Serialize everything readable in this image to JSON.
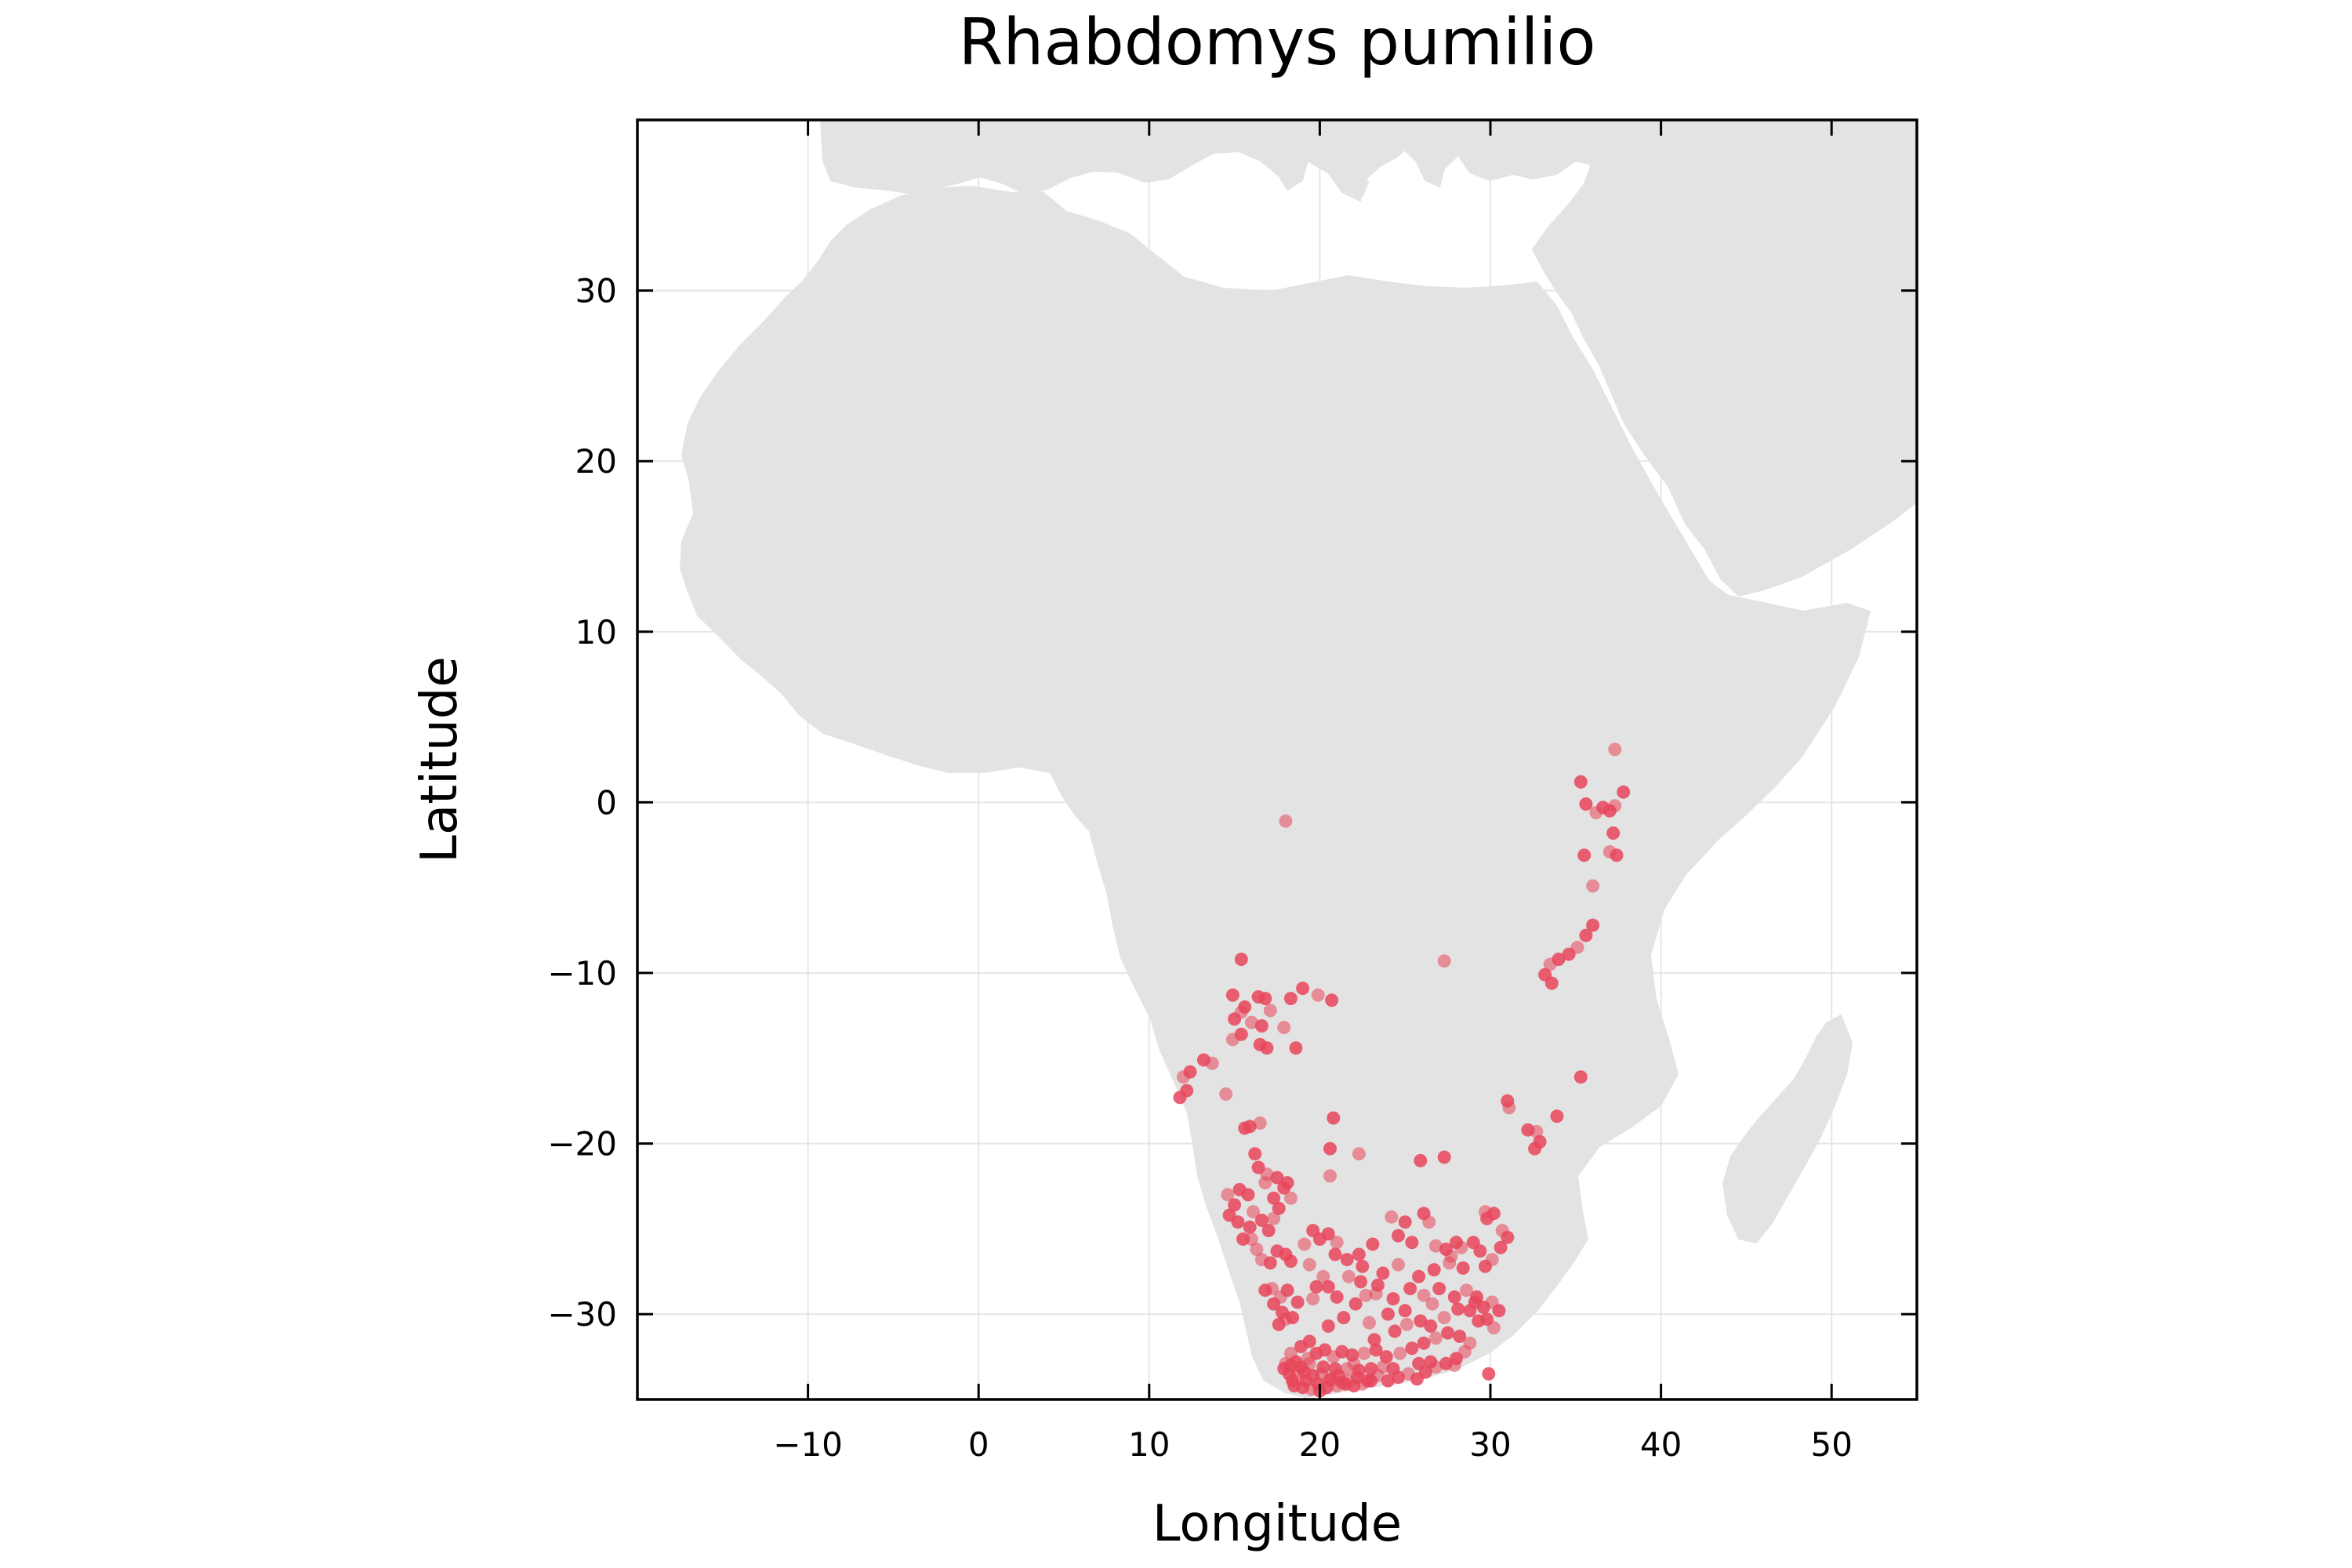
{
  "chart_data": {
    "type": "scatter",
    "title": "Rhabdomys pumilio",
    "xlabel": "Longitude",
    "ylabel": "Latitude",
    "xlim": [
      -20,
      55
    ],
    "ylim": [
      -35,
      40
    ],
    "xticks": [
      -10,
      0,
      10,
      20,
      30,
      40,
      50
    ],
    "yticks": [
      -30,
      -20,
      -10,
      0,
      10,
      20,
      30
    ],
    "xtick_labels": [
      "−10",
      "0",
      "10",
      "20",
      "30",
      "40",
      "50"
    ],
    "ytick_labels": [
      "−30",
      "−20",
      "−10",
      "0",
      "10",
      "20",
      "30"
    ],
    "grid": true,
    "legend": "none",
    "background_layer": "land-mass outline (Africa, southern Europe, Middle East, Madagascar) in light grey",
    "land_color": "#e3e3e3",
    "marker_color": "#e8455a",
    "series": [
      {
        "points": [
          [
            37.3,
            3.1
          ],
          [
            35.3,
            1.2
          ],
          [
            35.6,
            -0.1
          ],
          [
            36.2,
            -0.6
          ],
          [
            36.6,
            -0.3
          ],
          [
            37.0,
            -0.5
          ],
          [
            37.3,
            -0.2
          ],
          [
            37.8,
            0.6
          ],
          [
            37.2,
            -1.8
          ],
          [
            37.0,
            -2.9
          ],
          [
            37.4,
            -3.1
          ],
          [
            35.5,
            -3.1
          ],
          [
            36.0,
            -4.9
          ],
          [
            36.0,
            -7.2
          ],
          [
            35.6,
            -7.8
          ],
          [
            35.1,
            -8.5
          ],
          [
            34.6,
            -8.9
          ],
          [
            34.0,
            -9.2
          ],
          [
            33.5,
            -9.5
          ],
          [
            33.2,
            -10.1
          ],
          [
            33.6,
            -10.6
          ],
          [
            27.3,
            -9.3
          ],
          [
            35.3,
            -16.1
          ],
          [
            31.0,
            -17.5
          ],
          [
            31.1,
            -17.9
          ],
          [
            33.9,
            -18.4
          ],
          [
            32.2,
            -19.2
          ],
          [
            32.7,
            -19.3
          ],
          [
            32.6,
            -20.3
          ],
          [
            32.9,
            -19.9
          ],
          [
            18.0,
            -1.1
          ],
          [
            15.4,
            -9.2
          ],
          [
            14.9,
            -11.3
          ],
          [
            15.4,
            -12.3
          ],
          [
            15.0,
            -12.7
          ],
          [
            15.6,
            -12.0
          ],
          [
            16.0,
            -12.9
          ],
          [
            16.4,
            -11.4
          ],
          [
            16.8,
            -11.5
          ],
          [
            17.1,
            -12.2
          ],
          [
            16.6,
            -13.1
          ],
          [
            15.4,
            -13.6
          ],
          [
            14.9,
            -13.9
          ],
          [
            16.5,
            -14.2
          ],
          [
            16.9,
            -14.4
          ],
          [
            17.9,
            -13.2
          ],
          [
            18.3,
            -11.5
          ],
          [
            19.0,
            -10.9
          ],
          [
            19.9,
            -11.3
          ],
          [
            20.7,
            -11.6
          ],
          [
            18.6,
            -14.4
          ],
          [
            13.7,
            -15.3
          ],
          [
            13.2,
            -15.1
          ],
          [
            12.4,
            -15.8
          ],
          [
            12.0,
            -16.1
          ],
          [
            12.2,
            -16.9
          ],
          [
            11.8,
            -17.3
          ],
          [
            14.5,
            -17.1
          ],
          [
            15.6,
            -19.1
          ],
          [
            15.9,
            -19.0
          ],
          [
            16.5,
            -18.8
          ],
          [
            20.8,
            -18.5
          ],
          [
            20.6,
            -20.3
          ],
          [
            22.3,
            -20.6
          ],
          [
            27.3,
            -20.8
          ],
          [
            25.9,
            -21.0
          ],
          [
            20.6,
            -21.9
          ],
          [
            16.2,
            -20.6
          ],
          [
            16.4,
            -21.4
          ],
          [
            16.9,
            -21.8
          ],
          [
            17.5,
            -22.0
          ],
          [
            18.1,
            -22.3
          ],
          [
            16.8,
            -22.3
          ],
          [
            17.9,
            -22.6
          ],
          [
            15.3,
            -22.7
          ],
          [
            14.6,
            -23.0
          ],
          [
            15.8,
            -23.0
          ],
          [
            17.3,
            -23.2
          ],
          [
            18.3,
            -23.2
          ],
          [
            15.0,
            -23.6
          ],
          [
            17.6,
            -23.8
          ],
          [
            16.1,
            -24.0
          ],
          [
            14.7,
            -24.2
          ],
          [
            15.2,
            -24.6
          ],
          [
            17.3,
            -24.4
          ],
          [
            15.9,
            -24.9
          ],
          [
            16.6,
            -24.5
          ],
          [
            16.0,
            -25.6
          ],
          [
            17.0,
            -25.1
          ],
          [
            15.5,
            -25.6
          ],
          [
            16.3,
            -26.2
          ],
          [
            17.5,
            -26.3
          ],
          [
            18.0,
            -26.5
          ],
          [
            16.6,
            -26.8
          ],
          [
            17.1,
            -27.0
          ],
          [
            18.3,
            -26.9
          ],
          [
            19.1,
            -25.9
          ],
          [
            20.0,
            -25.6
          ],
          [
            20.5,
            -25.3
          ],
          [
            21.0,
            -25.8
          ],
          [
            19.6,
            -25.1
          ],
          [
            20.9,
            -26.5
          ],
          [
            19.4,
            -27.1
          ],
          [
            21.6,
            -26.8
          ],
          [
            22.3,
            -26.5
          ],
          [
            20.2,
            -27.8
          ],
          [
            19.8,
            -28.4
          ],
          [
            20.5,
            -28.4
          ],
          [
            21.7,
            -27.8
          ],
          [
            22.4,
            -28.1
          ],
          [
            18.1,
            -28.6
          ],
          [
            17.7,
            -29.0
          ],
          [
            17.3,
            -29.4
          ],
          [
            17.8,
            -29.9
          ],
          [
            18.0,
            -30.3
          ],
          [
            17.6,
            -30.6
          ],
          [
            18.4,
            -30.2
          ],
          [
            17.2,
            -28.5
          ],
          [
            16.8,
            -28.6
          ],
          [
            18.7,
            -29.3
          ],
          [
            19.6,
            -29.1
          ],
          [
            21.0,
            -29.0
          ],
          [
            22.1,
            -29.4
          ],
          [
            23.3,
            -28.8
          ],
          [
            24.3,
            -29.1
          ],
          [
            25.3,
            -28.5
          ],
          [
            26.1,
            -28.9
          ],
          [
            27.0,
            -28.5
          ],
          [
            27.9,
            -29.0
          ],
          [
            28.6,
            -28.6
          ],
          [
            29.2,
            -29.0
          ],
          [
            29.6,
            -29.6
          ],
          [
            30.1,
            -29.3
          ],
          [
            30.5,
            -29.8
          ],
          [
            29.8,
            -30.3
          ],
          [
            30.2,
            -30.8
          ],
          [
            29.3,
            -30.4
          ],
          [
            28.8,
            -29.8
          ],
          [
            24.2,
            -24.3
          ],
          [
            25.0,
            -24.6
          ],
          [
            26.1,
            -24.1
          ],
          [
            26.4,
            -24.6
          ],
          [
            24.6,
            -25.4
          ],
          [
            25.4,
            -25.8
          ],
          [
            26.8,
            -26.0
          ],
          [
            27.4,
            -26.2
          ],
          [
            28.0,
            -25.8
          ],
          [
            28.3,
            -26.1
          ],
          [
            29.0,
            -25.8
          ],
          [
            29.4,
            -26.3
          ],
          [
            29.7,
            -24.0
          ],
          [
            29.8,
            -24.4
          ],
          [
            30.2,
            -24.1
          ],
          [
            30.7,
            -25.1
          ],
          [
            31.0,
            -25.5
          ],
          [
            30.6,
            -26.1
          ],
          [
            30.1,
            -26.8
          ],
          [
            29.7,
            -27.2
          ],
          [
            28.4,
            -27.3
          ],
          [
            27.6,
            -27.0
          ],
          [
            26.7,
            -27.4
          ],
          [
            25.8,
            -27.8
          ],
          [
            24.6,
            -27.1
          ],
          [
            23.7,
            -27.6
          ],
          [
            23.4,
            -28.3
          ],
          [
            22.7,
            -28.9
          ],
          [
            19.4,
            -31.6
          ],
          [
            18.9,
            -31.9
          ],
          [
            18.3,
            -32.3
          ],
          [
            18.6,
            -32.8
          ],
          [
            18.9,
            -33.1
          ],
          [
            19.3,
            -32.6
          ],
          [
            19.8,
            -32.3
          ],
          [
            20.3,
            -32.1
          ],
          [
            20.8,
            -32.5
          ],
          [
            21.3,
            -32.2
          ],
          [
            21.9,
            -32.4
          ],
          [
            22.6,
            -32.3
          ],
          [
            23.3,
            -32.1
          ],
          [
            23.9,
            -32.5
          ],
          [
            24.7,
            -32.3
          ],
          [
            25.4,
            -32.0
          ],
          [
            26.1,
            -31.7
          ],
          [
            26.8,
            -31.4
          ],
          [
            27.5,
            -31.1
          ],
          [
            28.2,
            -31.3
          ],
          [
            28.8,
            -31.7
          ],
          [
            23.2,
            -31.5
          ],
          [
            24.4,
            -31.0
          ],
          [
            25.1,
            -30.6
          ],
          [
            25.9,
            -30.4
          ],
          [
            26.5,
            -30.7
          ],
          [
            27.3,
            -30.2
          ],
          [
            19.1,
            -33.4
          ],
          [
            19.6,
            -33.6
          ],
          [
            20.1,
            -33.5
          ],
          [
            20.6,
            -33.8
          ],
          [
            21.1,
            -33.6
          ],
          [
            21.7,
            -33.9
          ],
          [
            22.2,
            -33.7
          ],
          [
            22.8,
            -33.9
          ],
          [
            23.4,
            -33.6
          ],
          [
            24.0,
            -33.9
          ],
          [
            24.6,
            -33.7
          ],
          [
            25.2,
            -33.5
          ],
          [
            25.7,
            -33.8
          ],
          [
            26.2,
            -33.4
          ],
          [
            26.8,
            -33.1
          ],
          [
            27.4,
            -32.9
          ],
          [
            28.0,
            -32.6
          ],
          [
            28.5,
            -32.2
          ],
          [
            18.4,
            -33.9
          ],
          [
            18.2,
            -33.5
          ],
          [
            18.0,
            -32.9
          ],
          [
            18.5,
            -34.2
          ],
          [
            19.0,
            -34.3
          ],
          [
            19.5,
            -34.4
          ],
          [
            20.0,
            -34.5
          ],
          [
            20.4,
            -34.3
          ],
          [
            21.0,
            -34.2
          ],
          [
            21.5,
            -34.1
          ],
          [
            22.0,
            -34.2
          ],
          [
            22.5,
            -34.1
          ],
          [
            23.0,
            -33.9
          ],
          [
            17.9,
            -33.2
          ],
          [
            18.7,
            -33.5
          ],
          [
            19.2,
            -33.9
          ],
          [
            19.9,
            -34.1
          ],
          [
            20.7,
            -33.9
          ],
          [
            21.3,
            -34.0
          ],
          [
            18.3,
            -33.0
          ],
          [
            19.4,
            -32.9
          ],
          [
            20.2,
            -33.1
          ],
          [
            20.9,
            -33.2
          ],
          [
            21.6,
            -33.2
          ],
          [
            22.3,
            -33.3
          ],
          [
            23.0,
            -33.2
          ],
          [
            23.7,
            -33.1
          ],
          [
            24.3,
            -33.2
          ],
          [
            29.9,
            -33.5
          ],
          [
            27.9,
            -33.0
          ],
          [
            26.5,
            -32.8
          ],
          [
            25.8,
            -32.9
          ],
          [
            22.0,
            -32.9
          ],
          [
            20.5,
            -30.7
          ],
          [
            21.4,
            -30.2
          ],
          [
            22.9,
            -30.5
          ],
          [
            24.0,
            -30.0
          ],
          [
            25.0,
            -29.8
          ],
          [
            26.6,
            -29.4
          ],
          [
            28.1,
            -29.7
          ],
          [
            29.1,
            -29.3
          ],
          [
            27.7,
            -26.6
          ],
          [
            23.1,
            -25.9
          ],
          [
            22.5,
            -27.2
          ]
        ]
      }
    ]
  }
}
